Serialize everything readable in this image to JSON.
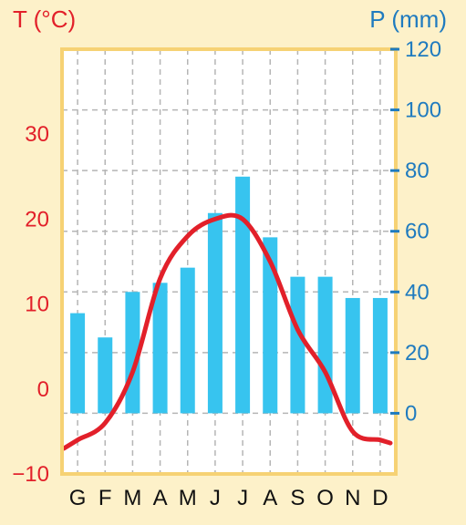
{
  "chart_data": {
    "type": "bar",
    "title": "",
    "categories": [
      "G",
      "F",
      "M",
      "A",
      "M",
      "J",
      "J",
      "A",
      "S",
      "O",
      "N",
      "D"
    ],
    "series": [
      {
        "type": "bar",
        "axis": "right",
        "values": [
          33,
          25,
          40,
          43,
          48,
          66,
          78,
          58,
          45,
          45,
          38,
          38
        ]
      },
      {
        "type": "line",
        "axis": "left",
        "values": [
          -6,
          -4,
          2,
          13,
          18,
          20,
          20,
          15,
          7,
          2,
          -5,
          -6
        ]
      }
    ],
    "left_axis": {
      "label": "T (°C)",
      "range": [
        -10,
        40
      ],
      "ticks": [
        "30",
        "20",
        "10",
        "0",
        "−10"
      ],
      "tick_values": [
        30,
        20,
        10,
        0,
        -10
      ]
    },
    "right_axis": {
      "label": "P (mm)",
      "range": [
        -20,
        120
      ],
      "ticks": [
        "120",
        "100",
        "80",
        "60",
        "40",
        "20",
        "0"
      ],
      "tick_values": [
        120,
        100,
        80,
        60,
        40,
        20,
        0
      ]
    },
    "grid": true,
    "colors": {
      "background": "#fdf1c9",
      "plot_background": "#ffffff",
      "bars": "#37c4ef",
      "temperature_line": "#e2202a",
      "temperature_text": "#e2202a",
      "precip_text": "#1f7bbf",
      "frame": "#f6d274"
    }
  }
}
